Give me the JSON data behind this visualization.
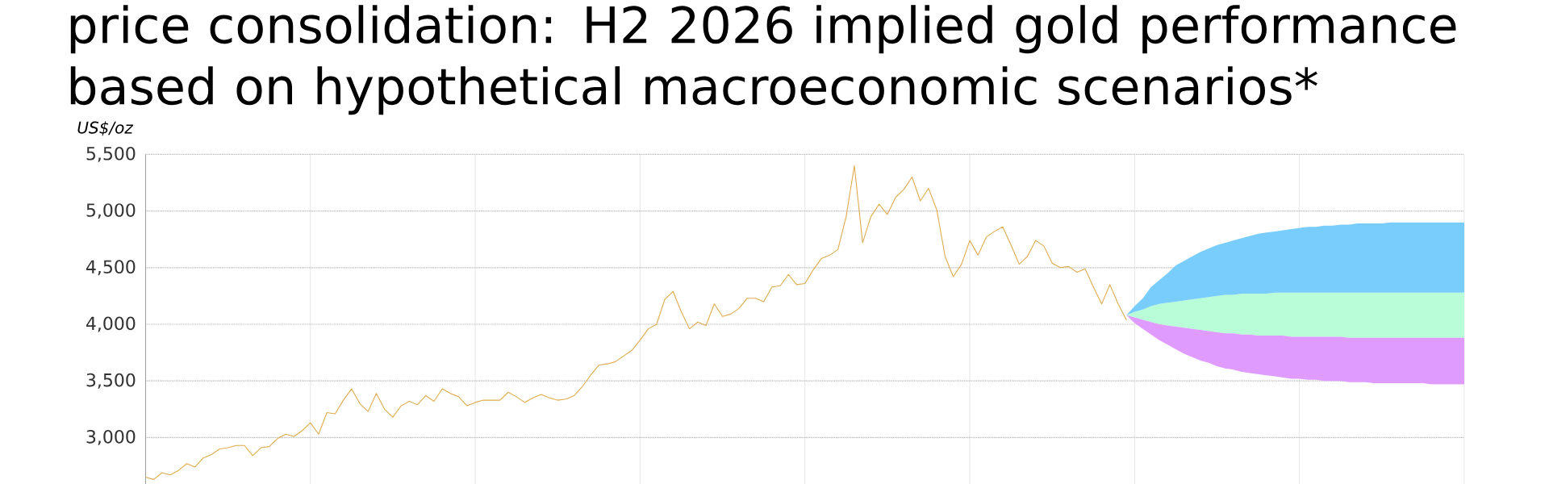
{
  "chart_data": {
    "type": "line",
    "title": "price consolidation: H2 2026 implied gold performance based on hypothetical macroeconomic scenarios*",
    "ylabel": "US$/oz",
    "categories": [
      null,
      null,
      null,
      null,
      null,
      null,
      null,
      null,
      null,
      null,
      null,
      null,
      null,
      null,
      null,
      null,
      null,
      null,
      null,
      null,
      null,
      null,
      null,
      null,
      null,
      null,
      null,
      null,
      null,
      null,
      null,
      null,
      null,
      null,
      null,
      null,
      null,
      null,
      null,
      null,
      null,
      null,
      null,
      null,
      null,
      null,
      null,
      null,
      null,
      null,
      null,
      null,
      null,
      null,
      null,
      null,
      null,
      null,
      null,
      null,
      null,
      null,
      null,
      null,
      null,
      null,
      null,
      null,
      null,
      null,
      null,
      null,
      null,
      null,
      null,
      null,
      null,
      null,
      null,
      null,
      null,
      null,
      null,
      null,
      null,
      null,
      null,
      null,
      null,
      null,
      null,
      null,
      null,
      null,
      null,
      null,
      null,
      null,
      null,
      null,
      null,
      null,
      null,
      null,
      null,
      null,
      null,
      null,
      null,
      null,
      null,
      null,
      null,
      null,
      null,
      null,
      null,
      null,
      null,
      null,
      null,
      null,
      null,
      null,
      null,
      null,
      null,
      null,
      null,
      null,
      null,
      null,
      null,
      null,
      null,
      null,
      null,
      null,
      null,
      null,
      null,
      null,
      null,
      null,
      null,
      null,
      null,
      null,
      null,
      null,
      null,
      null,
      null,
      null,
      null,
      null,
      null,
      null,
      null,
      null,
      null
    ],
    "ylim": [
      2590,
      5500
    ],
    "yticks": [
      {
        "value": 3000,
        "label": "3,000"
      },
      {
        "value": 3500,
        "label": "3,500"
      },
      {
        "value": 4000,
        "label": "4,000"
      },
      {
        "value": 4500,
        "label": "4,500"
      },
      {
        "value": 5000,
        "label": "5,000"
      },
      {
        "value": 5500,
        "label": "5,500"
      }
    ],
    "grid": true,
    "tick_labels": "y",
    "series": [
      {
        "color": "#dfab4e",
        "values": [
          2650,
          2630,
          2690,
          2670,
          2710,
          2770,
          2740,
          2820,
          2850,
          2900,
          2910,
          2930,
          2930,
          2840,
          2910,
          2920,
          2990,
          3030,
          3010,
          3060,
          3130,
          3030,
          3220,
          3210,
          3330,
          3430,
          3300,
          3230,
          3390,
          3250,
          3180,
          3280,
          3320,
          3290,
          3370,
          3320,
          3430,
          3390,
          3360,
          3280,
          3310,
          3330,
          3330,
          3330,
          3400,
          3360,
          3310,
          3350,
          3380,
          3350,
          3330,
          3340,
          3370,
          3450,
          3550,
          3640,
          3650,
          3670,
          3720,
          3770,
          3860,
          3960,
          4000,
          4220,
          4290,
          4110,
          3960,
          4020,
          3990,
          4180,
          4070,
          4090,
          4140,
          4230,
          4230,
          4200,
          4330,
          4340,
          4440,
          4350,
          4360,
          4480,
          4580,
          4610,
          4660,
          4950,
          5400,
          4720,
          4950,
          5060,
          4970,
          5120,
          5190,
          5300,
          5090,
          5200,
          5010,
          4600,
          4420,
          4530,
          4740,
          4610,
          4770,
          4820,
          4860,
          4700,
          4530,
          4600,
          4740,
          4690,
          4540,
          4500,
          4510,
          4460,
          4490,
          4330,
          4180,
          4350,
          4180,
          4040,
          null,
          null,
          null,
          null,
          null,
          null,
          null,
          null,
          null,
          null,
          null,
          null,
          null,
          null,
          null,
          null,
          null,
          null,
          null,
          null,
          null,
          null,
          null,
          null,
          null,
          null,
          null,
          null,
          null,
          null,
          null,
          null,
          null,
          null,
          null,
          null,
          null,
          null,
          null,
          null,
          null
        ]
      },
      {
        "type": "area",
        "color": "#b9fdd8",
        "values": [
          null,
          null,
          null,
          null,
          null,
          null,
          null,
          null,
          null,
          null,
          null,
          null,
          null,
          null,
          null,
          null,
          null,
          null,
          null,
          null,
          null,
          null,
          null,
          null,
          null,
          null,
          null,
          null,
          null,
          null,
          null,
          null,
          null,
          null,
          null,
          null,
          null,
          null,
          null,
          null,
          null,
          null,
          null,
          null,
          null,
          null,
          null,
          null,
          null,
          null,
          null,
          null,
          null,
          null,
          null,
          null,
          null,
          null,
          null,
          null,
          null,
          null,
          null,
          null,
          null,
          null,
          null,
          null,
          null,
          null,
          null,
          null,
          null,
          null,
          null,
          null,
          null,
          null,
          null,
          null,
          null,
          null,
          null,
          null,
          null,
          null,
          null,
          null,
          null,
          null,
          null,
          null,
          null,
          null,
          null,
          null,
          null,
          null,
          null,
          null,
          null,
          null,
          null,
          null,
          null,
          null,
          null,
          null,
          null,
          null,
          null,
          null,
          null,
          null,
          null,
          null,
          null,
          null,
          null,
          null,
          null,
          null,
          null,
          null,
          null,
          null,
          null,
          null,
          null,
          null,
          null,
          null,
          null,
          null,
          null,
          null,
          null,
          null,
          null,
          null,
          null,
          null,
          null,
          null,
          null,
          null,
          null,
          null,
          null,
          null,
          null,
          null,
          null,
          null,
          null,
          null,
          null,
          null,
          null,
          null,
          null
        ],
        "lower": [
          null,
          null,
          null,
          null,
          null,
          null,
          null,
          null,
          null,
          null,
          null,
          null,
          null,
          null,
          null,
          null,
          null,
          null,
          null,
          null,
          null,
          null,
          null,
          null,
          null,
          null,
          null,
          null,
          null,
          null,
          null,
          null,
          null,
          null,
          null,
          null,
          null,
          null,
          null,
          null,
          null,
          null,
          null,
          null,
          null,
          null,
          null,
          null,
          null,
          null,
          null,
          null,
          null,
          null,
          null,
          null,
          null,
          null,
          null,
          null,
          null,
          null,
          null,
          null,
          null,
          null,
          null,
          null,
          null,
          null,
          null,
          null,
          null,
          null,
          null,
          null,
          null,
          null,
          null,
          null,
          null,
          null,
          null,
          null,
          null,
          null,
          null,
          null,
          null,
          null,
          null,
          null,
          null,
          null,
          null,
          null,
          null,
          null,
          null,
          null,
          null,
          null,
          null,
          null,
          null,
          null,
          null,
          null,
          null,
          null,
          null,
          null,
          null,
          null,
          null,
          null,
          null,
          null,
          null,
          4080,
          4060,
          4040,
          4020,
          4000,
          3990,
          3980,
          3970,
          3960,
          3950,
          3940,
          3930,
          3920,
          3920,
          3910,
          3910,
          3900,
          3900,
          3900,
          3900,
          3890,
          3890,
          3890,
          3890,
          3890,
          3890,
          3890,
          3880,
          3880,
          3880,
          3880,
          3880,
          3880,
          3880,
          3880,
          3880,
          3880,
          3880,
          3880,
          3880,
          3880,
          3880
        ],
        "upper": [
          null,
          null,
          null,
          null,
          null,
          null,
          null,
          null,
          null,
          null,
          null,
          null,
          null,
          null,
          null,
          null,
          null,
          null,
          null,
          null,
          null,
          null,
          null,
          null,
          null,
          null,
          null,
          null,
          null,
          null,
          null,
          null,
          null,
          null,
          null,
          null,
          null,
          null,
          null,
          null,
          null,
          null,
          null,
          null,
          null,
          null,
          null,
          null,
          null,
          null,
          null,
          null,
          null,
          null,
          null,
          null,
          null,
          null,
          null,
          null,
          null,
          null,
          null,
          null,
          null,
          null,
          null,
          null,
          null,
          null,
          null,
          null,
          null,
          null,
          null,
          null,
          null,
          null,
          null,
          null,
          null,
          null,
          null,
          null,
          null,
          null,
          null,
          null,
          null,
          null,
          null,
          null,
          null,
          null,
          null,
          null,
          null,
          null,
          null,
          null,
          null,
          null,
          null,
          null,
          null,
          null,
          null,
          null,
          null,
          null,
          null,
          null,
          null,
          null,
          null,
          null,
          null,
          null,
          null,
          4080,
          4110,
          4130,
          4160,
          4180,
          4190,
          4200,
          4210,
          4220,
          4230,
          4240,
          4250,
          4260,
          4260,
          4270,
          4270,
          4270,
          4270,
          4280,
          4280,
          4280,
          4280,
          4280,
          4280,
          4280,
          4280,
          4280,
          4280,
          4280,
          4280,
          4280,
          4280,
          4280,
          4280,
          4280,
          4280,
          4280,
          4280,
          4280,
          4280,
          4280,
          4280
        ]
      },
      {
        "type": "area",
        "color": "#79cdfd",
        "values": [
          null,
          null,
          null,
          null,
          null,
          null,
          null,
          null,
          null,
          null,
          null,
          null,
          null,
          null,
          null,
          null,
          null,
          null,
          null,
          null,
          null,
          null,
          null,
          null,
          null,
          null,
          null,
          null,
          null,
          null,
          null,
          null,
          null,
          null,
          null,
          null,
          null,
          null,
          null,
          null,
          null,
          null,
          null,
          null,
          null,
          null,
          null,
          null,
          null,
          null,
          null,
          null,
          null,
          null,
          null,
          null,
          null,
          null,
          null,
          null,
          null,
          null,
          null,
          null,
          null,
          null,
          null,
          null,
          null,
          null,
          null,
          null,
          null,
          null,
          null,
          null,
          null,
          null,
          null,
          null,
          null,
          null,
          null,
          null,
          null,
          null,
          null,
          null,
          null,
          null,
          null,
          null,
          null,
          null,
          null,
          null,
          null,
          null,
          null,
          null,
          null,
          null,
          null,
          null,
          null,
          null,
          null,
          null,
          null,
          null,
          null,
          null,
          null,
          null,
          null,
          null,
          null,
          null,
          null,
          null,
          null,
          null,
          null,
          null,
          null,
          null,
          null,
          null,
          null,
          null,
          null,
          null,
          null,
          null,
          null,
          null,
          null,
          null,
          null,
          null,
          null,
          null,
          null,
          null,
          null,
          null,
          null,
          null,
          null,
          null,
          null,
          null,
          null,
          null,
          null,
          null,
          null,
          null,
          null,
          null,
          null
        ],
        "lower": [
          null,
          null,
          null,
          null,
          null,
          null,
          null,
          null,
          null,
          null,
          null,
          null,
          null,
          null,
          null,
          null,
          null,
          null,
          null,
          null,
          null,
          null,
          null,
          null,
          null,
          null,
          null,
          null,
          null,
          null,
          null,
          null,
          null,
          null,
          null,
          null,
          null,
          null,
          null,
          null,
          null,
          null,
          null,
          null,
          null,
          null,
          null,
          null,
          null,
          null,
          null,
          null,
          null,
          null,
          null,
          null,
          null,
          null,
          null,
          null,
          null,
          null,
          null,
          null,
          null,
          null,
          null,
          null,
          null,
          null,
          null,
          null,
          null,
          null,
          null,
          null,
          null,
          null,
          null,
          null,
          null,
          null,
          null,
          null,
          null,
          null,
          null,
          null,
          null,
          null,
          null,
          null,
          null,
          null,
          null,
          null,
          null,
          null,
          null,
          null,
          null,
          null,
          null,
          null,
          null,
          null,
          null,
          null,
          null,
          null,
          null,
          null,
          null,
          null,
          null,
          null,
          null,
          null,
          null,
          4080,
          4110,
          4130,
          4160,
          4180,
          4190,
          4200,
          4210,
          4220,
          4230,
          4240,
          4250,
          4260,
          4260,
          4270,
          4270,
          4270,
          4270,
          4280,
          4280,
          4280,
          4280,
          4280,
          4280,
          4280,
          4280,
          4280,
          4280,
          4280,
          4280,
          4280,
          4280,
          4280,
          4280,
          4280,
          4280,
          4280,
          4280,
          4280,
          4280,
          4280,
          4280
        ],
        "upper": [
          null,
          null,
          null,
          null,
          null,
          null,
          null,
          null,
          null,
          null,
          null,
          null,
          null,
          null,
          null,
          null,
          null,
          null,
          null,
          null,
          null,
          null,
          null,
          null,
          null,
          null,
          null,
          null,
          null,
          null,
          null,
          null,
          null,
          null,
          null,
          null,
          null,
          null,
          null,
          null,
          null,
          null,
          null,
          null,
          null,
          null,
          null,
          null,
          null,
          null,
          null,
          null,
          null,
          null,
          null,
          null,
          null,
          null,
          null,
          null,
          null,
          null,
          null,
          null,
          null,
          null,
          null,
          null,
          null,
          null,
          null,
          null,
          null,
          null,
          null,
          null,
          null,
          null,
          null,
          null,
          null,
          null,
          null,
          null,
          null,
          null,
          null,
          null,
          null,
          null,
          null,
          null,
          null,
          null,
          null,
          null,
          null,
          null,
          null,
          null,
          null,
          null,
          null,
          null,
          null,
          null,
          null,
          null,
          null,
          null,
          null,
          null,
          null,
          null,
          null,
          null,
          null,
          null,
          null,
          4080,
          4160,
          4230,
          4330,
          4390,
          4450,
          4520,
          4560,
          4600,
          4640,
          4670,
          4700,
          4720,
          4740,
          4760,
          4780,
          4800,
          4810,
          4820,
          4830,
          4840,
          4850,
          4860,
          4860,
          4870,
          4870,
          4880,
          4880,
          4890,
          4890,
          4890,
          4890,
          4900,
          4900,
          4900,
          4900,
          4900,
          4900,
          4900,
          4900,
          4900,
          4900
        ]
      },
      {
        "type": "area",
        "color": "#df9bfd",
        "values": [
          null,
          null,
          null,
          null,
          null,
          null,
          null,
          null,
          null,
          null,
          null,
          null,
          null,
          null,
          null,
          null,
          null,
          null,
          null,
          null,
          null,
          null,
          null,
          null,
          null,
          null,
          null,
          null,
          null,
          null,
          null,
          null,
          null,
          null,
          null,
          null,
          null,
          null,
          null,
          null,
          null,
          null,
          null,
          null,
          null,
          null,
          null,
          null,
          null,
          null,
          null,
          null,
          null,
          null,
          null,
          null,
          null,
          null,
          null,
          null,
          null,
          null,
          null,
          null,
          null,
          null,
          null,
          null,
          null,
          null,
          null,
          null,
          null,
          null,
          null,
          null,
          null,
          null,
          null,
          null,
          null,
          null,
          null,
          null,
          null,
          null,
          null,
          null,
          null,
          null,
          null,
          null,
          null,
          null,
          null,
          null,
          null,
          null,
          null,
          null,
          null,
          null,
          null,
          null,
          null,
          null,
          null,
          null,
          null,
          null,
          null,
          null,
          null,
          null,
          null,
          null,
          null,
          null,
          null,
          null,
          null,
          null,
          null,
          null,
          null,
          null,
          null,
          null,
          null,
          null,
          null,
          null,
          null,
          null,
          null,
          null,
          null,
          null,
          null,
          null,
          null,
          null,
          null,
          null,
          null,
          null,
          null,
          null,
          null,
          null,
          null,
          null,
          null,
          null,
          null,
          null,
          null,
          null,
          null,
          null,
          null
        ],
        "lower": [
          null,
          null,
          null,
          null,
          null,
          null,
          null,
          null,
          null,
          null,
          null,
          null,
          null,
          null,
          null,
          null,
          null,
          null,
          null,
          null,
          null,
          null,
          null,
          null,
          null,
          null,
          null,
          null,
          null,
          null,
          null,
          null,
          null,
          null,
          null,
          null,
          null,
          null,
          null,
          null,
          null,
          null,
          null,
          null,
          null,
          null,
          null,
          null,
          null,
          null,
          null,
          null,
          null,
          null,
          null,
          null,
          null,
          null,
          null,
          null,
          null,
          null,
          null,
          null,
          null,
          null,
          null,
          null,
          null,
          null,
          null,
          null,
          null,
          null,
          null,
          null,
          null,
          null,
          null,
          null,
          null,
          null,
          null,
          null,
          null,
          null,
          null,
          null,
          null,
          null,
          null,
          null,
          null,
          null,
          null,
          null,
          null,
          null,
          null,
          null,
          null,
          null,
          null,
          null,
          null,
          null,
          null,
          null,
          null,
          null,
          null,
          null,
          null,
          null,
          null,
          null,
          null,
          null,
          null,
          4080,
          4010,
          3960,
          3910,
          3860,
          3820,
          3780,
          3740,
          3710,
          3680,
          3660,
          3630,
          3610,
          3600,
          3580,
          3570,
          3560,
          3550,
          3540,
          3530,
          3520,
          3520,
          3510,
          3510,
          3500,
          3500,
          3500,
          3490,
          3490,
          3490,
          3480,
          3480,
          3480,
          3480,
          3480,
          3480,
          3480,
          3470,
          3470,
          3470,
          3470,
          3470
        ],
        "upper": [
          null,
          null,
          null,
          null,
          null,
          null,
          null,
          null,
          null,
          null,
          null,
          null,
          null,
          null,
          null,
          null,
          null,
          null,
          null,
          null,
          null,
          null,
          null,
          null,
          null,
          null,
          null,
          null,
          null,
          null,
          null,
          null,
          null,
          null,
          null,
          null,
          null,
          null,
          null,
          null,
          null,
          null,
          null,
          null,
          null,
          null,
          null,
          null,
          null,
          null,
          null,
          null,
          null,
          null,
          null,
          null,
          null,
          null,
          null,
          null,
          null,
          null,
          null,
          null,
          null,
          null,
          null,
          null,
          null,
          null,
          null,
          null,
          null,
          null,
          null,
          null,
          null,
          null,
          null,
          null,
          null,
          null,
          null,
          null,
          null,
          null,
          null,
          null,
          null,
          null,
          null,
          null,
          null,
          null,
          null,
          null,
          null,
          null,
          null,
          null,
          null,
          null,
          null,
          null,
          null,
          null,
          null,
          null,
          null,
          null,
          null,
          null,
          null,
          null,
          null,
          null,
          null,
          null,
          null,
          4080,
          4060,
          4040,
          4020,
          4000,
          3990,
          3980,
          3970,
          3960,
          3950,
          3940,
          3930,
          3920,
          3920,
          3910,
          3910,
          3900,
          3900,
          3900,
          3900,
          3890,
          3890,
          3890,
          3890,
          3890,
          3890,
          3890,
          3880,
          3880,
          3880,
          3880,
          3880,
          3880,
          3880,
          3880,
          3880,
          3880,
          3880,
          3880,
          3880,
          3880,
          3880
        ]
      }
    ]
  }
}
